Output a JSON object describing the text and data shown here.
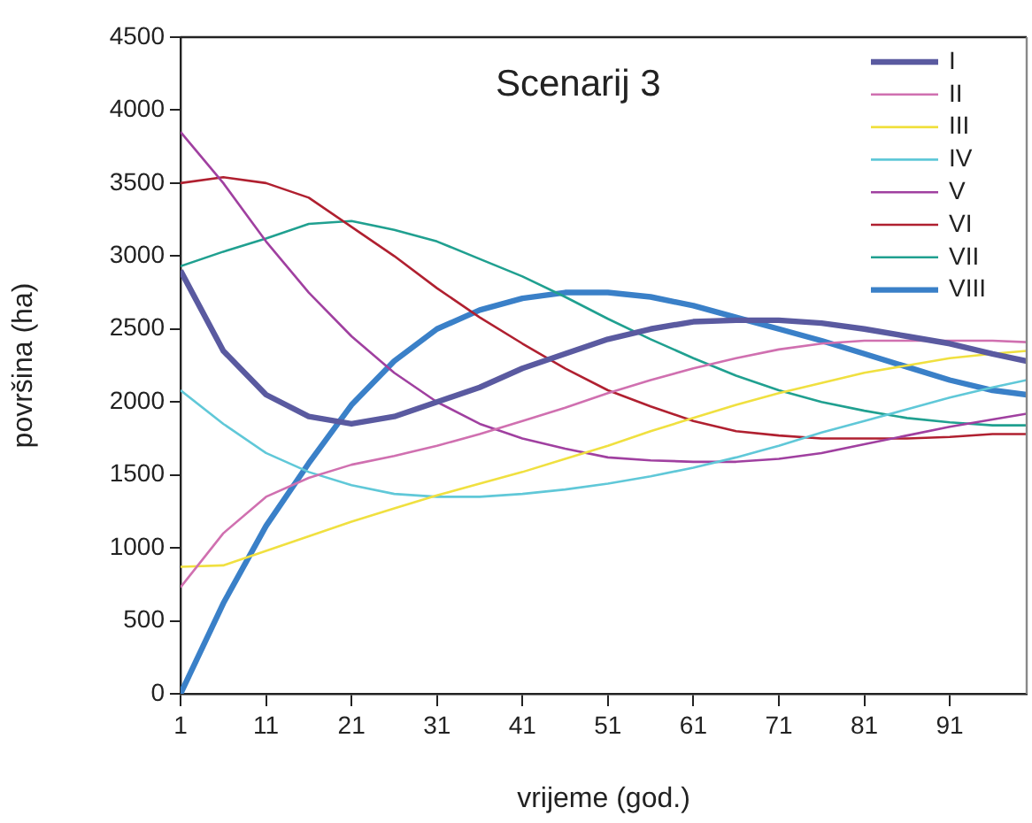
{
  "chart_data": {
    "type": "line",
    "title": "Scenarij 3",
    "xlabel": "vrijeme (god.)",
    "ylabel": "površina (ha)",
    "x": [
      1,
      6,
      11,
      16,
      21,
      26,
      31,
      36,
      41,
      46,
      51,
      56,
      61,
      66,
      71,
      76,
      81,
      86,
      91,
      96,
      100
    ],
    "xlim": [
      1,
      100
    ],
    "xticks": [
      1,
      11,
      21,
      31,
      41,
      51,
      61,
      71,
      81,
      91
    ],
    "ylim": [
      0,
      4500
    ],
    "yticks": [
      0,
      500,
      1000,
      1500,
      2000,
      2500,
      3000,
      3500,
      4000,
      4500
    ],
    "grid": false,
    "legend": "top right",
    "marker": "none",
    "line_style": "solid",
    "series": [
      {
        "name": "I",
        "color": "#5a5aa0",
        "values": [
          2900,
          2350,
          2050,
          1900,
          1850,
          1900,
          2000,
          2100,
          2230,
          2330,
          2430,
          2500,
          2550,
          2560,
          2560,
          2540,
          2500,
          2450,
          2400,
          2330,
          2280
        ]
      },
      {
        "name": "II",
        "color": "#d070b0",
        "values": [
          730,
          1100,
          1350,
          1480,
          1570,
          1630,
          1700,
          1780,
          1870,
          1960,
          2060,
          2150,
          2230,
          2300,
          2360,
          2400,
          2420,
          2420,
          2420,
          2420,
          2410
        ]
      },
      {
        "name": "III",
        "color": "#f0e040",
        "values": [
          870,
          880,
          980,
          1080,
          1180,
          1270,
          1360,
          1440,
          1520,
          1610,
          1700,
          1800,
          1890,
          1980,
          2060,
          2130,
          2200,
          2250,
          2300,
          2330,
          2350
        ]
      },
      {
        "name": "IV",
        "color": "#60c8d8",
        "values": [
          2080,
          1850,
          1650,
          1520,
          1430,
          1370,
          1350,
          1350,
          1370,
          1400,
          1440,
          1490,
          1550,
          1620,
          1700,
          1790,
          1870,
          1950,
          2030,
          2100,
          2150
        ]
      },
      {
        "name": "V",
        "color": "#a040a0",
        "values": [
          3850,
          3500,
          3100,
          2750,
          2450,
          2200,
          2000,
          1850,
          1750,
          1680,
          1620,
          1600,
          1590,
          1590,
          1610,
          1650,
          1710,
          1770,
          1830,
          1880,
          1920
        ]
      },
      {
        "name": "VI",
        "color": "#b02030",
        "values": [
          3500,
          3540,
          3500,
          3400,
          3200,
          3000,
          2780,
          2580,
          2400,
          2230,
          2080,
          1970,
          1870,
          1800,
          1770,
          1750,
          1750,
          1750,
          1760,
          1780,
          1780
        ]
      },
      {
        "name": "VII",
        "color": "#20a090",
        "values": [
          2930,
          3030,
          3120,
          3220,
          3240,
          3180,
          3100,
          2980,
          2860,
          2720,
          2570,
          2430,
          2300,
          2180,
          2080,
          2000,
          1940,
          1890,
          1860,
          1840,
          1840
        ]
      },
      {
        "name": "VIII",
        "color": "#3a80c8",
        "values": [
          0,
          620,
          1150,
          1580,
          1980,
          2280,
          2500,
          2630,
          2710,
          2750,
          2750,
          2720,
          2660,
          2580,
          2500,
          2420,
          2330,
          2240,
          2150,
          2080,
          2050
        ]
      }
    ]
  }
}
